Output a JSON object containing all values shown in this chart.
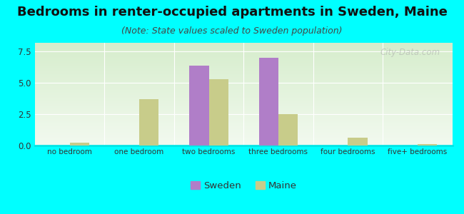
{
  "title": "Bedrooms in renter-occupied apartments in Sweden, Maine",
  "subtitle": "(Note: State values scaled to Sweden population)",
  "categories": [
    "no bedroom",
    "one bedroom",
    "two bedrooms",
    "three bedrooms",
    "four bedrooms",
    "five+ bedrooms"
  ],
  "sweden_values": [
    0,
    0,
    6.4,
    7.0,
    0,
    0
  ],
  "maine_values": [
    0.25,
    3.7,
    5.3,
    2.5,
    0.65,
    0.12
  ],
  "sweden_color": "#b07ec8",
  "maine_color": "#c8cc8a",
  "ylim": [
    0,
    8.2
  ],
  "yticks": [
    0,
    2.5,
    5,
    7.5
  ],
  "background_color": "#00ffff",
  "bar_width": 0.28,
  "legend_sweden": "Sweden",
  "legend_maine": "Maine",
  "title_fontsize": 13,
  "subtitle_fontsize": 9,
  "watermark": "City-Data.com"
}
